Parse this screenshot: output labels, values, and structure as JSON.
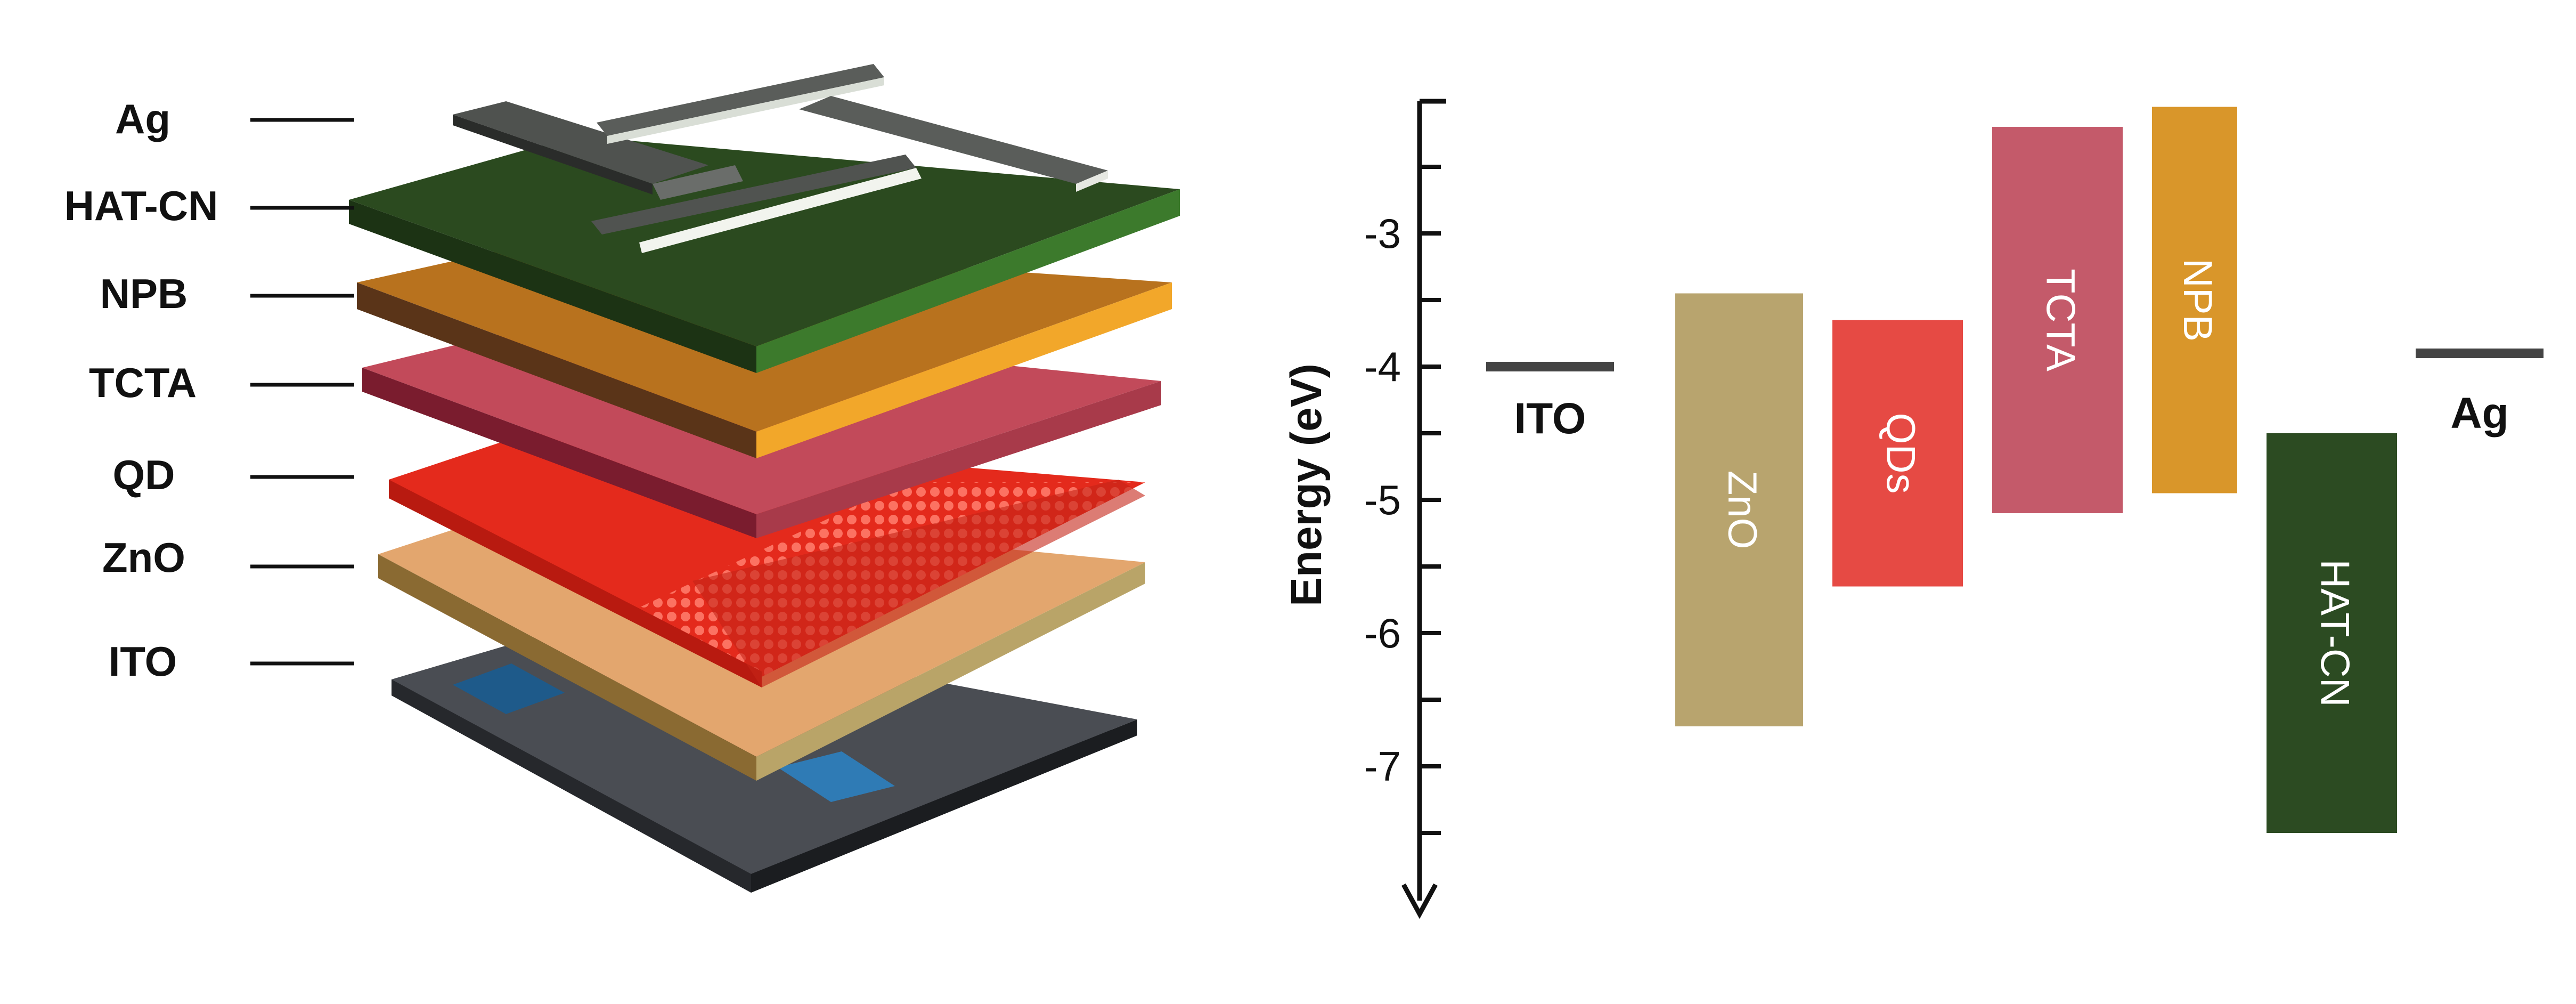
{
  "device_stack": {
    "layers": [
      {
        "label": "Ag"
      },
      {
        "label": "HAT-CN"
      },
      {
        "label": "NPB"
      },
      {
        "label": "TCTA"
      },
      {
        "label": "QD"
      },
      {
        "label": "ZnO"
      },
      {
        "label": "ITO"
      }
    ],
    "colors": {
      "Ag": "#555a55",
      "HAT-CN": "#2c5a24",
      "NPB": "#e69a2a",
      "TCTA": "#c25a6a",
      "QD": "#e8301e",
      "ZnO": "#d9a86a",
      "ITO": "#3a3d42"
    }
  },
  "chart_data": {
    "type": "energy-level diagram",
    "ylabel": "Energy (eV)",
    "yticks": [
      "-3",
      "-4",
      "-5",
      "-6",
      "-7"
    ],
    "y_direction": "downward",
    "ylim": [
      -2.0,
      -8.0
    ],
    "levels": [
      {
        "label": "ITO",
        "energy": -4.0,
        "color": "#444444"
      },
      {
        "label": "Ag",
        "energy": -3.9,
        "color": "#444444"
      }
    ],
    "bands": [
      {
        "label": "ZnO",
        "top": -3.45,
        "bottom": -6.7,
        "color": "#b8a46e",
        "text_rotation": 90
      },
      {
        "label": "QDs",
        "top": -3.65,
        "bottom": -5.65,
        "color": "#e64a44",
        "text_rotation": 90
      },
      {
        "label": "TCTA",
        "top": -2.2,
        "bottom": -5.1,
        "color": "#c45a6a",
        "text_rotation": 90
      },
      {
        "label": "NPB",
        "top": -2.05,
        "bottom": -4.95,
        "color": "#d9962a",
        "text_rotation": 90
      },
      {
        "label": "HAT-CN",
        "top": -4.5,
        "bottom": -7.5,
        "color": "#2c4b22",
        "text_rotation": 90
      }
    ]
  }
}
